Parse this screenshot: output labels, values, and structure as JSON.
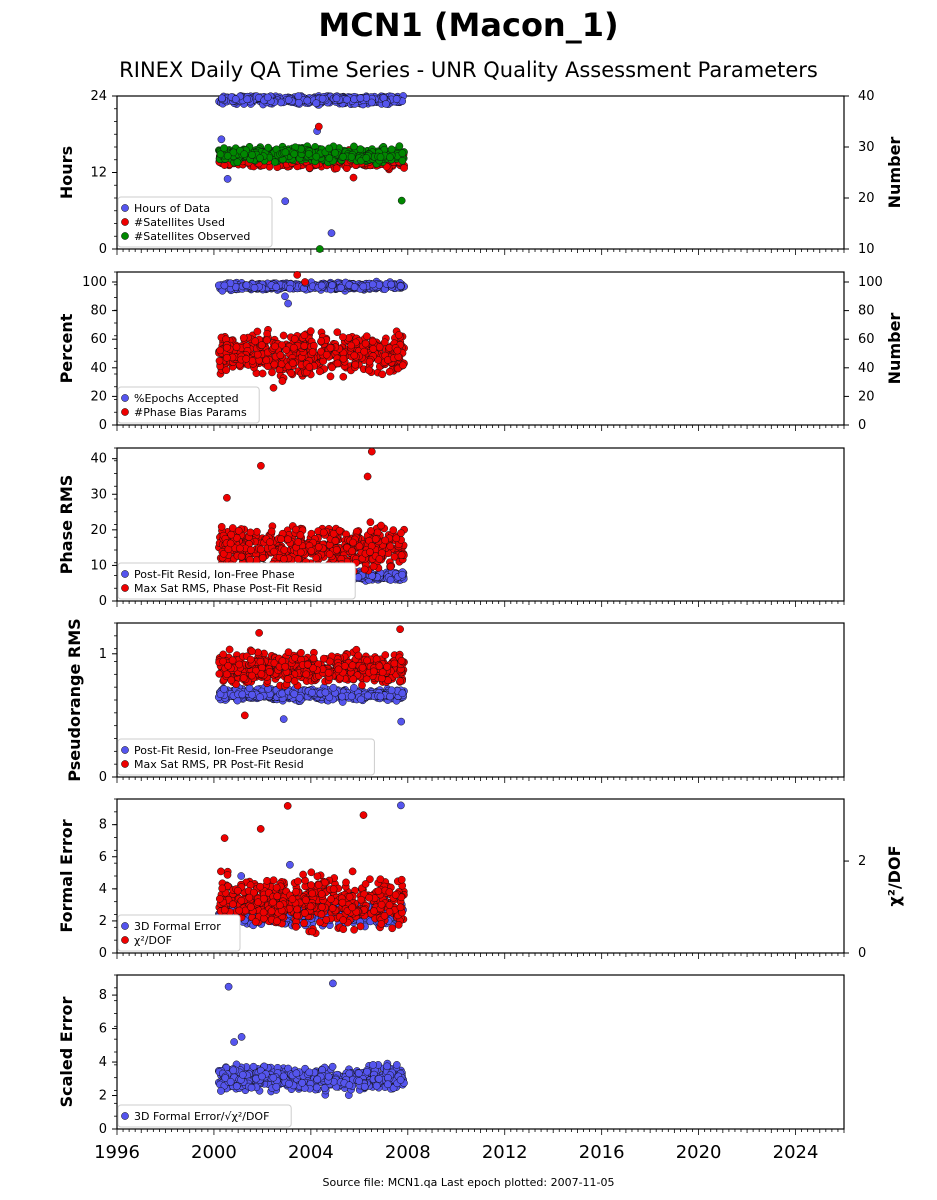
{
  "title": "MCN1 (Macon_1)",
  "subtitle": "RINEX Daily QA Time Series - UNR Quality Assessment Parameters",
  "footer": "Source file: MCN1.qa Last epoch plotted: 2007-11-05",
  "colors": {
    "blue": "#5555ee",
    "red": "#ee0000",
    "green": "#008800"
  },
  "chart_data": {
    "type": "scatter",
    "x_range": [
      1996,
      2026
    ],
    "x_ticks": [
      "1996",
      "2000",
      "2004",
      "2008",
      "2012",
      "2016",
      "2020",
      "2024"
    ],
    "data_span": [
      "2000-03",
      "2007-11-05"
    ],
    "panels": [
      {
        "id": "hours",
        "ylabel": "Hours",
        "yrange": [
          0,
          24
        ],
        "yticks": [
          "0",
          "12",
          "24"
        ],
        "ylabel_right": "Number",
        "yrange_right": [
          10,
          40
        ],
        "yticks_right": [
          "10",
          "20",
          "30",
          "40"
        ],
        "legend": [
          "Hours of Data",
          "#Satellites Used",
          "#Satellites Observed"
        ],
        "series": [
          {
            "name": "Hours of Data",
            "color": "blue",
            "axis": "left",
            "center": 23.5,
            "spread": 0.6,
            "outliers": [
              18.5,
              17.2,
              11.0,
              7.5,
              2.5
            ]
          },
          {
            "name": "#Satellites Used",
            "color": "red",
            "axis": "right",
            "center": 27.5,
            "spread": 1.3,
            "outliers": [
              34.0,
              24.0,
              15.0
            ]
          },
          {
            "name": "#Satellites Observed",
            "color": "green",
            "axis": "right",
            "center": 28.5,
            "spread": 1.2,
            "outliers": [
              19.5,
              14.8,
              10.0
            ]
          }
        ]
      },
      {
        "id": "percent",
        "ylabel": "Percent",
        "yrange": [
          0,
          107
        ],
        "yticks": [
          "0",
          "20",
          "40",
          "60",
          "80",
          "100"
        ],
        "ylabel_right": "Number",
        "yrange_right": [
          0,
          107
        ],
        "yticks_right": [
          "0",
          "20",
          "40",
          "60",
          "80",
          "100"
        ],
        "legend": [
          "%Epochs Accepted",
          "#Phase Bias Params"
        ],
        "series": [
          {
            "name": "%Epochs Accepted",
            "color": "blue",
            "axis": "left",
            "center": 97,
            "spread": 2,
            "outliers": [
              85,
              45,
              90
            ]
          },
          {
            "name": "#Phase Bias Params",
            "color": "red",
            "axis": "right",
            "center": 50,
            "spread": 12,
            "outliers": [
              105,
              100,
              26,
              10
            ]
          }
        ]
      },
      {
        "id": "phase",
        "ylabel": "Phase RMS",
        "yrange": [
          0,
          43
        ],
        "yticks": [
          "0",
          "10",
          "20",
          "30",
          "40"
        ],
        "legend": [
          "Post-Fit Resid, Ion-Free Phase",
          "Max Sat RMS, Phase Post-Fit Resid"
        ],
        "series": [
          {
            "name": "Post-Fit Resid, Ion-Free Phase",
            "color": "blue",
            "axis": "left",
            "center": 7,
            "spread": 1,
            "outliers": []
          },
          {
            "name": "Max Sat RMS, Phase Post-Fit Resid",
            "color": "red",
            "axis": "left",
            "center": 15,
            "spread": 5,
            "outliers": [
              42,
              38,
              35,
              29
            ]
          }
        ]
      },
      {
        "id": "pseudorange",
        "ylabel": "Pseudorange RMS",
        "yrange": [
          0,
          1.25
        ],
        "yticks": [
          "0",
          "1"
        ],
        "legend": [
          "Post-Fit Resid, Ion-Free Pseudorange",
          "Max Sat RMS, PR Post-Fit Resid"
        ],
        "series": [
          {
            "name": "Post-Fit Resid, Ion-Free Pseudorange",
            "color": "blue",
            "axis": "left",
            "center": 0.67,
            "spread": 0.04,
            "outliers": [
              0.47,
              0.45
            ]
          },
          {
            "name": "Max Sat RMS, PR Post-Fit Resid",
            "color": "red",
            "axis": "left",
            "center": 0.88,
            "spread": 0.1,
            "outliers": [
              1.2,
              1.17,
              0.5
            ]
          }
        ]
      },
      {
        "id": "formal",
        "ylabel": "Formal Error",
        "yrange": [
          0,
          9.6
        ],
        "yticks": [
          "0",
          "2",
          "4",
          "6",
          "8"
        ],
        "ylabel_right": "χ²/DOF",
        "yrange_right": [
          0,
          3.35
        ],
        "yticks_right": [
          "0",
          "2"
        ],
        "legend": [
          "3D Formal Error",
          "χ²/DOF"
        ],
        "series": [
          {
            "name": "3D Formal Error",
            "color": "blue",
            "axis": "left",
            "center": 2.5,
            "spread": 0.6,
            "outliers": [
              9.2,
              4.8,
              5.5
            ]
          },
          {
            "name": "χ²/DOF",
            "color": "red",
            "axis": "right",
            "center": 1.1,
            "spread": 0.45,
            "outliers": [
              3.2,
              3.0,
              2.7,
              2.5
            ]
          }
        ]
      },
      {
        "id": "scaled",
        "ylabel": "Scaled Error",
        "yrange": [
          0,
          9.2
        ],
        "yticks": [
          "0",
          "2",
          "4",
          "6",
          "8"
        ],
        "legend": [
          "3D Formal Error/√χ²/DOF"
        ],
        "series": [
          {
            "name": "3D Formal Error/√χ²/DOF",
            "color": "blue",
            "axis": "left",
            "center": 3.0,
            "spread": 0.6,
            "outliers": [
              8.7,
              8.5,
              5.5,
              5.2
            ]
          }
        ]
      }
    ]
  }
}
